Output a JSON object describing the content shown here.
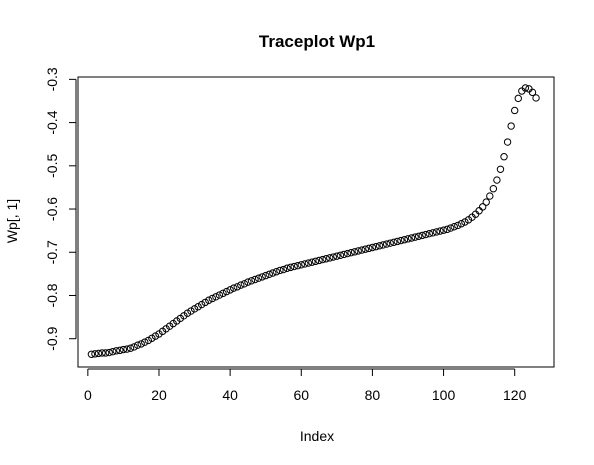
{
  "chart_data": {
    "type": "scatter",
    "title": "Traceplot Wp1",
    "xlabel": "Index",
    "ylabel": "Wp[, 1]",
    "xlim": [
      1,
      127
    ],
    "ylim": [
      -0.94,
      -0.32
    ],
    "x_ticks": [
      0,
      20,
      40,
      60,
      80,
      100,
      120
    ],
    "x_tick_labels": [
      "0",
      "20",
      "40",
      "60",
      "80",
      "100",
      "120"
    ],
    "y_ticks": [
      -0.9,
      -0.8,
      -0.7,
      -0.6,
      -0.5,
      -0.4,
      -0.3
    ],
    "y_tick_labels": [
      "-0.9",
      "-0.8",
      "-0.7",
      "-0.6",
      "-0.5",
      "-0.4",
      "-0.3"
    ],
    "grid": false,
    "legend": "none",
    "marker": "open-circle",
    "marker_color": "#000000",
    "points": [
      {
        "x": 1,
        "y": -0.936
      },
      {
        "x": 2,
        "y": -0.935
      },
      {
        "x": 3,
        "y": -0.934
      },
      {
        "x": 4,
        "y": -0.933
      },
      {
        "x": 5,
        "y": -0.933
      },
      {
        "x": 6,
        "y": -0.932
      },
      {
        "x": 7,
        "y": -0.93
      },
      {
        "x": 8,
        "y": -0.928
      },
      {
        "x": 9,
        "y": -0.927
      },
      {
        "x": 10,
        "y": -0.925
      },
      {
        "x": 11,
        "y": -0.924
      },
      {
        "x": 12,
        "y": -0.922
      },
      {
        "x": 13,
        "y": -0.919
      },
      {
        "x": 14,
        "y": -0.915
      },
      {
        "x": 15,
        "y": -0.912
      },
      {
        "x": 16,
        "y": -0.908
      },
      {
        "x": 17,
        "y": -0.904
      },
      {
        "x": 18,
        "y": -0.899
      },
      {
        "x": 19,
        "y": -0.894
      },
      {
        "x": 20,
        "y": -0.889
      },
      {
        "x": 21,
        "y": -0.883
      },
      {
        "x": 22,
        "y": -0.877
      },
      {
        "x": 23,
        "y": -0.871
      },
      {
        "x": 24,
        "y": -0.865
      },
      {
        "x": 25,
        "y": -0.859
      },
      {
        "x": 26,
        "y": -0.853
      },
      {
        "x": 27,
        "y": -0.847
      },
      {
        "x": 28,
        "y": -0.841
      },
      {
        "x": 29,
        "y": -0.836
      },
      {
        "x": 30,
        "y": -0.831
      },
      {
        "x": 31,
        "y": -0.826
      },
      {
        "x": 32,
        "y": -0.821
      },
      {
        "x": 33,
        "y": -0.816
      },
      {
        "x": 34,
        "y": -0.811
      },
      {
        "x": 35,
        "y": -0.807
      },
      {
        "x": 36,
        "y": -0.803
      },
      {
        "x": 37,
        "y": -0.799
      },
      {
        "x": 38,
        "y": -0.795
      },
      {
        "x": 39,
        "y": -0.791
      },
      {
        "x": 40,
        "y": -0.787
      },
      {
        "x": 41,
        "y": -0.783
      },
      {
        "x": 42,
        "y": -0.78
      },
      {
        "x": 43,
        "y": -0.776
      },
      {
        "x": 44,
        "y": -0.773
      },
      {
        "x": 45,
        "y": -0.769
      },
      {
        "x": 46,
        "y": -0.766
      },
      {
        "x": 47,
        "y": -0.763
      },
      {
        "x": 48,
        "y": -0.76
      },
      {
        "x": 49,
        "y": -0.757
      },
      {
        "x": 50,
        "y": -0.754
      },
      {
        "x": 51,
        "y": -0.751
      },
      {
        "x": 52,
        "y": -0.748
      },
      {
        "x": 53,
        "y": -0.745
      },
      {
        "x": 54,
        "y": -0.742
      },
      {
        "x": 55,
        "y": -0.74
      },
      {
        "x": 56,
        "y": -0.737
      },
      {
        "x": 57,
        "y": -0.735
      },
      {
        "x": 58,
        "y": -0.733
      },
      {
        "x": 59,
        "y": -0.731
      },
      {
        "x": 60,
        "y": -0.729
      },
      {
        "x": 61,
        "y": -0.727
      },
      {
        "x": 62,
        "y": -0.725
      },
      {
        "x": 63,
        "y": -0.723
      },
      {
        "x": 64,
        "y": -0.721
      },
      {
        "x": 65,
        "y": -0.719
      },
      {
        "x": 66,
        "y": -0.717
      },
      {
        "x": 67,
        "y": -0.715
      },
      {
        "x": 68,
        "y": -0.713
      },
      {
        "x": 69,
        "y": -0.711
      },
      {
        "x": 70,
        "y": -0.709
      },
      {
        "x": 71,
        "y": -0.707
      },
      {
        "x": 72,
        "y": -0.705
      },
      {
        "x": 73,
        "y": -0.703
      },
      {
        "x": 74,
        "y": -0.701
      },
      {
        "x": 75,
        "y": -0.699
      },
      {
        "x": 76,
        "y": -0.697
      },
      {
        "x": 77,
        "y": -0.695
      },
      {
        "x": 78,
        "y": -0.693
      },
      {
        "x": 79,
        "y": -0.691
      },
      {
        "x": 80,
        "y": -0.689
      },
      {
        "x": 81,
        "y": -0.687
      },
      {
        "x": 82,
        "y": -0.685
      },
      {
        "x": 83,
        "y": -0.683
      },
      {
        "x": 84,
        "y": -0.681
      },
      {
        "x": 85,
        "y": -0.679
      },
      {
        "x": 86,
        "y": -0.677
      },
      {
        "x": 87,
        "y": -0.675
      },
      {
        "x": 88,
        "y": -0.673
      },
      {
        "x": 89,
        "y": -0.671
      },
      {
        "x": 90,
        "y": -0.669
      },
      {
        "x": 91,
        "y": -0.667
      },
      {
        "x": 92,
        "y": -0.665
      },
      {
        "x": 93,
        "y": -0.663
      },
      {
        "x": 94,
        "y": -0.661
      },
      {
        "x": 95,
        "y": -0.659
      },
      {
        "x": 96,
        "y": -0.657
      },
      {
        "x": 97,
        "y": -0.655
      },
      {
        "x": 98,
        "y": -0.653
      },
      {
        "x": 99,
        "y": -0.651
      },
      {
        "x": 100,
        "y": -0.649
      },
      {
        "x": 101,
        "y": -0.647
      },
      {
        "x": 102,
        "y": -0.644
      },
      {
        "x": 103,
        "y": -0.641
      },
      {
        "x": 104,
        "y": -0.638
      },
      {
        "x": 105,
        "y": -0.634
      },
      {
        "x": 106,
        "y": -0.63
      },
      {
        "x": 107,
        "y": -0.625
      },
      {
        "x": 108,
        "y": -0.619
      },
      {
        "x": 109,
        "y": -0.612
      },
      {
        "x": 110,
        "y": -0.604
      },
      {
        "x": 111,
        "y": -0.595
      },
      {
        "x": 112,
        "y": -0.584
      },
      {
        "x": 113,
        "y": -0.57
      },
      {
        "x": 114,
        "y": -0.553
      },
      {
        "x": 115,
        "y": -0.533
      },
      {
        "x": 116,
        "y": -0.508
      },
      {
        "x": 117,
        "y": -0.479
      },
      {
        "x": 118,
        "y": -0.445
      },
      {
        "x": 119,
        "y": -0.408
      },
      {
        "x": 120,
        "y": -0.372
      },
      {
        "x": 121,
        "y": -0.344
      },
      {
        "x": 122,
        "y": -0.327
      },
      {
        "x": 123,
        "y": -0.32
      },
      {
        "x": 124,
        "y": -0.322
      },
      {
        "x": 125,
        "y": -0.33
      },
      {
        "x": 126,
        "y": -0.343
      }
    ]
  }
}
